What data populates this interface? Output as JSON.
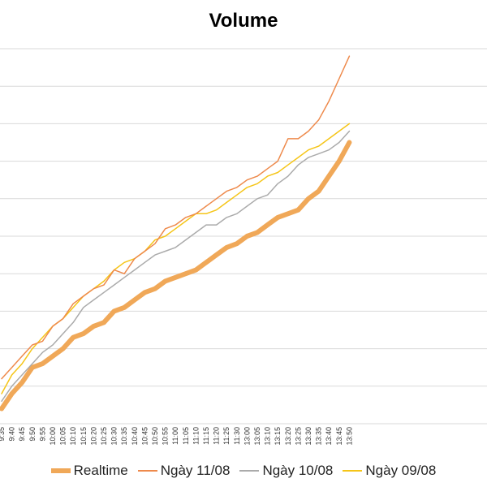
{
  "chart_data": {
    "type": "line",
    "title": "Volume",
    "xlabel": "",
    "ylabel": "",
    "grid": true,
    "legend_position": "bottom",
    "categories": [
      "9:35",
      "9:40",
      "9:45",
      "9:50",
      "9:55",
      "10:00",
      "10:05",
      "10:10",
      "10:15",
      "10:20",
      "10:25",
      "10:30",
      "10:35",
      "10:40",
      "10:45",
      "10:50",
      "10:55",
      "11:00",
      "11:05",
      "11:10",
      "11:15",
      "11:20",
      "11:25",
      "11:30",
      "13:00",
      "13:05",
      "13:10",
      "13:15",
      "13:20",
      "13:25",
      "13:30",
      "13:35",
      "13:40",
      "13:45",
      "13:50"
    ],
    "x": [
      "9:35",
      "9:40",
      "9:45",
      "9:50",
      "9:55",
      "10:00",
      "10:05",
      "10:10",
      "10:15",
      "10:20",
      "10:25",
      "10:30",
      "10:35",
      "10:40",
      "10:45",
      "10:50",
      "10:55",
      "11:00",
      "11:05",
      "11:10",
      "11:15",
      "11:20",
      "11:25",
      "11:30",
      "13:00",
      "13:05",
      "13:10",
      "13:15",
      "13:20",
      "13:25",
      "13:30",
      "13:35",
      "13:40",
      "13:45",
      "13:50"
    ],
    "ylim": [
      0,
      10
    ],
    "series": [
      {
        "name": "Realtime",
        "color": "#F0A858",
        "width": 6,
        "values": [
          0.4,
          0.8,
          1.1,
          1.5,
          1.6,
          1.8,
          2.0,
          2.3,
          2.4,
          2.6,
          2.7,
          3.0,
          3.1,
          3.3,
          3.5,
          3.6,
          3.8,
          3.9,
          4.0,
          4.1,
          4.3,
          4.5,
          4.7,
          4.8,
          5.0,
          5.1,
          5.3,
          5.5,
          5.6,
          5.7,
          6.0,
          6.2,
          6.6,
          7.0,
          7.5
        ]
      },
      {
        "name": "Ngày 11/08",
        "color": "#EE8A4C",
        "width": 1.5,
        "values": [
          1.2,
          1.5,
          1.8,
          2.1,
          2.2,
          2.6,
          2.8,
          3.2,
          3.4,
          3.6,
          3.7,
          4.1,
          4.0,
          4.4,
          4.6,
          4.8,
          5.2,
          5.3,
          5.5,
          5.6,
          5.8,
          6.0,
          6.2,
          6.3,
          6.5,
          6.6,
          6.8,
          7.0,
          7.6,
          7.6,
          7.8,
          8.1,
          8.6,
          9.2,
          9.8
        ]
      },
      {
        "name": "Ngày 10/08",
        "color": "#ABABAB",
        "width": 1.5,
        "values": [
          0.6,
          1.0,
          1.3,
          1.6,
          1.9,
          2.1,
          2.4,
          2.7,
          3.1,
          3.3,
          3.5,
          3.7,
          3.9,
          4.1,
          4.3,
          4.5,
          4.6,
          4.7,
          4.9,
          5.1,
          5.3,
          5.3,
          5.5,
          5.6,
          5.8,
          6.0,
          6.1,
          6.4,
          6.6,
          6.9,
          7.1,
          7.2,
          7.3,
          7.5,
          7.8
        ]
      },
      {
        "name": "Ngày 09/08",
        "color": "#F5C518",
        "width": 1.5,
        "values": [
          0.8,
          1.3,
          1.6,
          2.0,
          2.3,
          2.6,
          2.8,
          3.1,
          3.4,
          3.6,
          3.8,
          4.1,
          4.3,
          4.4,
          4.6,
          4.9,
          5.0,
          5.2,
          5.4,
          5.6,
          5.6,
          5.7,
          5.9,
          6.1,
          6.3,
          6.4,
          6.6,
          6.7,
          6.9,
          7.1,
          7.3,
          7.4,
          7.6,
          7.8,
          8.0
        ]
      }
    ]
  }
}
